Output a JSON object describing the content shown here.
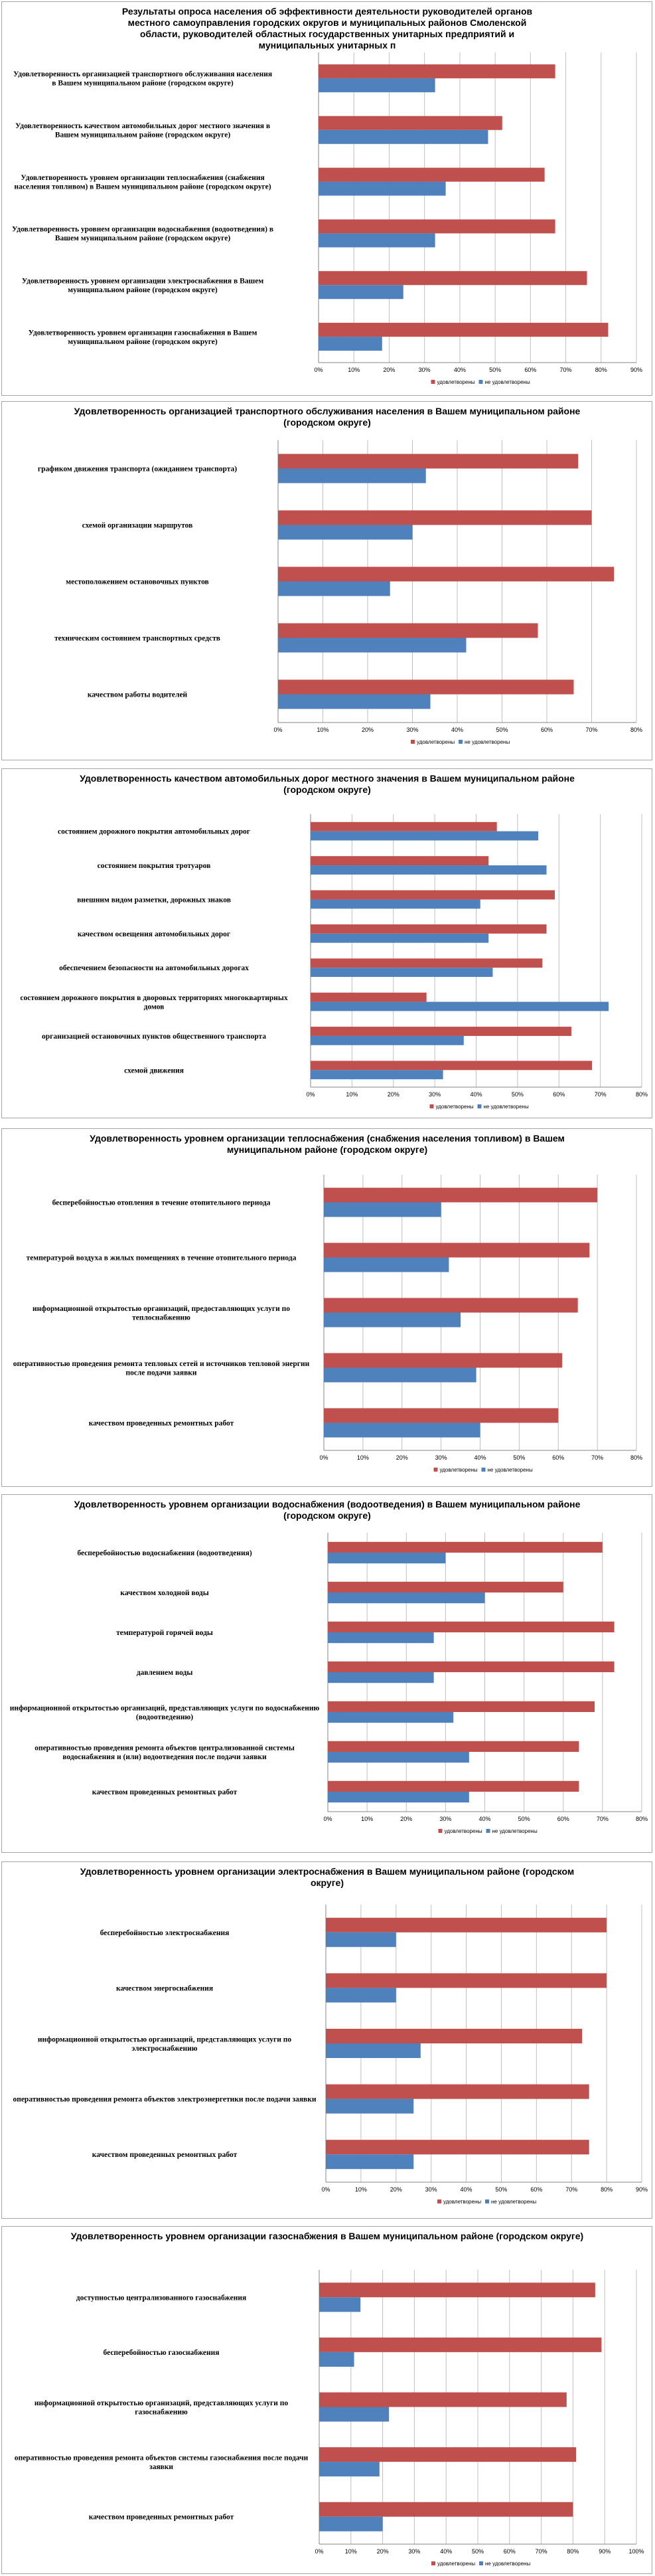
{
  "colors": {
    "satisfied": "#c0504d",
    "unsatisfied": "#4f81bd",
    "grid": "#bfbfbf",
    "axis": "#868686"
  },
  "legend": {
    "satisfied": "удовлетворены",
    "unsatisfied": "не удовлетворены"
  },
  "chart_data": [
    {
      "type": "bar",
      "orientation": "horizontal",
      "title": "Результаты опроса населения об эффективности деятельности руководителей органов местного самоуправления городских округов и муниципальных районов Смоленской области, руководителей областных государственных унитарных предприятий и муниципальных унитарных п",
      "xlim": [
        0,
        90
      ],
      "xticks": [
        0,
        10,
        20,
        30,
        40,
        50,
        60,
        70,
        80,
        90
      ],
      "xtick_suffix": "%",
      "categories": [
        "Удовлетворенность организацией транспортного обслуживания населения в Вашем муниципальном районе (городском округе)",
        "Удовлетворенность качеством автомобильных дорог местного значения в Вашем муниципальном районе (городском округе)",
        "Удовлетворенность уровнем организации теплоснабжения (снабжения населения топливом) в Вашем муниципальном районе (городском округе)",
        "Удовлетворенность уровнем организации водоснабжения (водоотведения) в Вашем муниципальном районе (городском округе)",
        "Удовлетворенность уровнем организации электроснабжения в Вашем муниципальном районе (городском округе)",
        "Удовлетворенность уровнем организации газоснабжения в Вашем муниципальном районе (городском округе)"
      ],
      "series": [
        {
          "name": "удовлетворены",
          "values": [
            67,
            52,
            64,
            67,
            76,
            82
          ]
        },
        {
          "name": "не удовлетворены",
          "values": [
            33,
            48,
            36,
            33,
            24,
            18
          ]
        }
      ]
    },
    {
      "type": "bar",
      "orientation": "horizontal",
      "title": "Удовлетворенность организацией транспортного обслуживания населения в Вашем муниципальном районе (городском округе)",
      "xlim": [
        0,
        80
      ],
      "xticks": [
        0,
        10,
        20,
        30,
        40,
        50,
        60,
        70,
        80
      ],
      "xtick_suffix": "%",
      "categories": [
        "графиком движения транспорта (ожиданием транспорта)",
        "схемой организации маршрутов",
        "местоположением остановочных пунктов",
        "техническим состоянием транспортных средств",
        "качеством работы водителей"
      ],
      "series": [
        {
          "name": "удовлетворены",
          "values": [
            67,
            70,
            75,
            58,
            66
          ]
        },
        {
          "name": "не удовлетворены",
          "values": [
            33,
            30,
            25,
            42,
            34
          ]
        }
      ]
    },
    {
      "type": "bar",
      "orientation": "horizontal",
      "title": "Удовлетворенность качеством автомобильных дорог местного значения в Вашем муниципальном районе (городском округе)",
      "xlim": [
        0,
        80
      ],
      "xticks": [
        0,
        10,
        20,
        30,
        40,
        50,
        60,
        70,
        80
      ],
      "xtick_suffix": "%",
      "categories": [
        "состоянием дорожного покрытия автомобильных дорог",
        "состоянием покрытия тротуаров",
        "внешним видом разметки, дорожных знаков",
        "качеством освещения автомобильных дорог",
        "обеспечением безопасности на автомобильных дорогах",
        "состоянием дорожного покрытия в дворовых территориях многоквартирных домов",
        "организацией остановочных пунктов общественного транспорта",
        "схемой движения"
      ],
      "series": [
        {
          "name": "удовлетворены",
          "values": [
            45,
            43,
            59,
            57,
            56,
            28,
            63,
            68
          ]
        },
        {
          "name": "не удовлетворены",
          "values": [
            55,
            57,
            41,
            43,
            44,
            72,
            37,
            32
          ]
        }
      ]
    },
    {
      "type": "bar",
      "orientation": "horizontal",
      "title": "Удовлетворенность уровнем организации теплоснабжения (снабжения населения топливом) в Вашем муниципальном районе (городском округе)",
      "xlim": [
        0,
        80
      ],
      "xticks": [
        0,
        10,
        20,
        30,
        40,
        50,
        60,
        70,
        80
      ],
      "xtick_suffix": "%",
      "categories": [
        "бесперебойностью отопления в течение отопительного периода",
        "температурой воздуха в жилых помещениях в течение отопительного периода",
        "информационной открытостью организаций, предоставляющих услуги по теплоснабжению",
        "оперативностью проведения ремонта тепловых сетей и источников тепловой энергии после подачи заявки",
        "качеством проведенных ремонтных работ"
      ],
      "series": [
        {
          "name": "удовлетворены",
          "values": [
            70,
            68,
            65,
            61,
            60
          ]
        },
        {
          "name": "не удовлетворены",
          "values": [
            30,
            32,
            35,
            39,
            40
          ]
        }
      ]
    },
    {
      "type": "bar",
      "orientation": "horizontal",
      "title": "Удовлетворенность уровнем организации водоснабжения (водоотведения) в Вашем муниципальном районе (городском округе)",
      "xlim": [
        0,
        80
      ],
      "xticks": [
        0,
        10,
        20,
        30,
        40,
        50,
        60,
        70,
        80
      ],
      "xtick_suffix": "%",
      "categories": [
        "бесперебойностью водоснабжения (водоотведения)",
        "качеством холодной воды",
        "температурой горячей воды",
        "давлением воды",
        "информационной открытостью организаций, представляющих услуги по водоснабжению (водоотведению)",
        "оперативностью проведения ремонта объектов централизованной системы водоснабжения и (или) водоотведения после подачи заявки",
        "качеством проведенных ремонтных работ"
      ],
      "series": [
        {
          "name": "удовлетворены",
          "values": [
            70,
            60,
            73,
            73,
            68,
            64,
            64
          ]
        },
        {
          "name": "не удовлетворены",
          "values": [
            30,
            40,
            27,
            27,
            32,
            36,
            36
          ]
        }
      ]
    },
    {
      "type": "bar",
      "orientation": "horizontal",
      "title": "Удовлетворенность уровнем организации электроснабжения в Вашем муниципальном районе (городском округе)",
      "xlim": [
        0,
        90
      ],
      "xticks": [
        0,
        10,
        20,
        30,
        40,
        50,
        60,
        70,
        80,
        90
      ],
      "xtick_suffix": "%",
      "categories": [
        "бесперебойностью электроснабжения",
        "качеством энергоснабжения",
        "информационной открытостью организаций, представляющих услуги по электроснабжению",
        "оперативностью проведения ремонта объектов электроэнергетики после подачи заявки",
        "качеством проведенных ремонтных работ"
      ],
      "series": [
        {
          "name": "удовлетворены",
          "values": [
            80,
            80,
            73,
            75,
            75
          ]
        },
        {
          "name": "не удовлетворены",
          "values": [
            20,
            20,
            27,
            25,
            25
          ]
        }
      ]
    },
    {
      "type": "bar",
      "orientation": "horizontal",
      "title": "Удовлетворенность уровнем организации газоснабжения в Вашем муниципальном районе (городском округе)",
      "xlim": [
        0,
        100
      ],
      "xticks": [
        0,
        10,
        20,
        30,
        40,
        50,
        60,
        70,
        80,
        90,
        100
      ],
      "xtick_suffix": "%",
      "categories": [
        "доступностью централизованного газоснабжения",
        "бесперебойностью газоснабжения",
        "информационной открытостью организаций, представляющих услуги по газоснабжению",
        "оперативностью проведения ремонта объектов системы газоснабжения после подачи заявки",
        "качеством проведенных ремонтных работ"
      ],
      "series": [
        {
          "name": "удовлетворены",
          "values": [
            87,
            89,
            78,
            81,
            80
          ]
        },
        {
          "name": "не удовлетворены",
          "values": [
            13,
            11,
            22,
            19,
            20
          ]
        }
      ]
    }
  ]
}
